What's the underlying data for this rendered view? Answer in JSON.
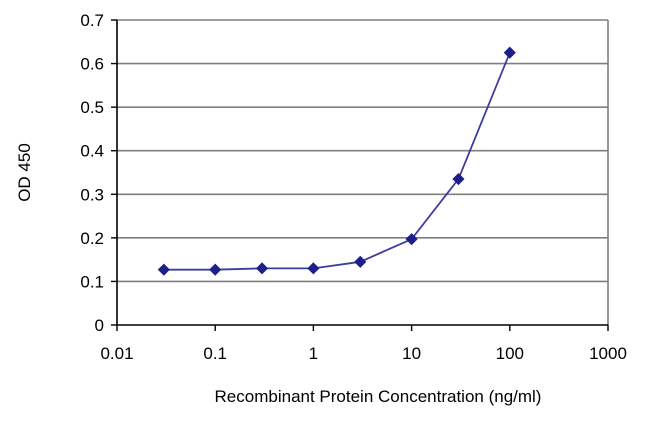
{
  "chart_data": {
    "type": "line",
    "title": "",
    "xlabel": "Recombinant Protein Concentration (ng/ml)",
    "ylabel": "OD 450",
    "x_scale": "log",
    "xlim": [
      0.01,
      1000
    ],
    "ylim": [
      0,
      0.7
    ],
    "x_ticks": [
      0.01,
      0.1,
      1,
      10,
      100,
      1000
    ],
    "x_tick_labels": [
      "0.01",
      "0.1",
      "1",
      "10",
      "100",
      "1000"
    ],
    "y_ticks": [
      0,
      0.1,
      0.2,
      0.3,
      0.4,
      0.5,
      0.6,
      0.7
    ],
    "y_tick_labels": [
      "0",
      "0.1",
      "0.2",
      "0.3",
      "0.4",
      "0.5",
      "0.6",
      "0.7"
    ],
    "grid": "horizontal",
    "legend": "none",
    "series": [
      {
        "x": [
          0.03,
          0.1,
          0.3,
          1,
          3,
          10,
          30,
          100
        ],
        "y": [
          0.127,
          0.127,
          0.13,
          0.13,
          0.145,
          0.197,
          0.335,
          0.625
        ],
        "color": "#3d3d9e",
        "marker": "diamond",
        "marker_color": "#1f1f8a"
      }
    ],
    "colors": {
      "plot_background": "#ffffff",
      "gridline": "#7f7f7f",
      "plot_border": "#7f7f7f"
    }
  }
}
